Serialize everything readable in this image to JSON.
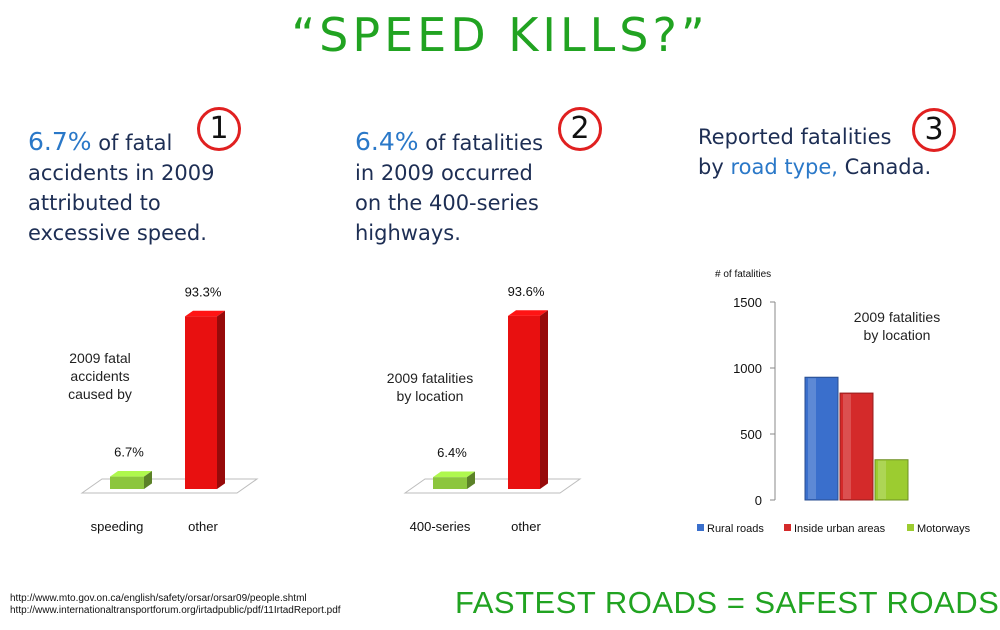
{
  "title": "“SPEED KILLS?”",
  "panels": [
    {
      "badge": "1",
      "line1_hl": "6.7%",
      "line1_rest": " of fatal",
      "line2": "accidents in 2009",
      "line3": "attributed to",
      "line4": "excessive speed."
    },
    {
      "badge": "2",
      "line1_hl": "6.4%",
      "line1_rest": " of fatalities",
      "line2": "in 2009 occurred",
      "line3": "on the 400-series",
      "line4": "highways."
    },
    {
      "badge": "3",
      "line1": "Reported fatalities",
      "line2_pre": "by ",
      "line2_hl": "road type,",
      "line2_post": " Canada."
    }
  ],
  "chart_data": [
    {
      "type": "bar",
      "annotation": [
        "2009 fatal",
        "accidents",
        "caused by"
      ],
      "categories": [
        "speeding",
        "other"
      ],
      "values": [
        6.7,
        93.3
      ],
      "value_labels": [
        "6.7%",
        "93.3%"
      ],
      "colors": [
        "#8cc63e",
        "#e81010"
      ],
      "ylim": [
        0,
        100
      ]
    },
    {
      "type": "bar",
      "annotation": [
        "2009 fatalities",
        "by location"
      ],
      "categories": [
        "400-series",
        "other"
      ],
      "values": [
        6.4,
        93.6
      ],
      "value_labels": [
        "6.4%",
        "93.6%"
      ],
      "colors": [
        "#8cc63e",
        "#e81010"
      ],
      "ylim": [
        0,
        100
      ]
    },
    {
      "type": "bar",
      "ylabel": "# of fatalities",
      "annotation": [
        "2009 fatalities",
        "by location"
      ],
      "ylim": [
        0,
        1500
      ],
      "yticks": [
        0,
        500,
        1000,
        1500
      ],
      "categories": [
        ""
      ],
      "series": [
        {
          "name": "Rural roads",
          "values": [
            930
          ],
          "color": "#3a6fcc"
        },
        {
          "name": "Inside urban areas",
          "values": [
            810
          ],
          "color": "#d42a2a"
        },
        {
          "name": "Motorways",
          "values": [
            305
          ],
          "color": "#9ccc30"
        }
      ],
      "legend": "bottom"
    }
  ],
  "sources": [
    "http://www.mto.gov.on.ca/english/safety/orsar/orsar09/people.shtml",
    "http://www.internationaltransportforum.org/irtadpublic/pdf/11IrtadReport.pdf"
  ],
  "footer": "FASTEST ROADS = SAFEST ROADS"
}
